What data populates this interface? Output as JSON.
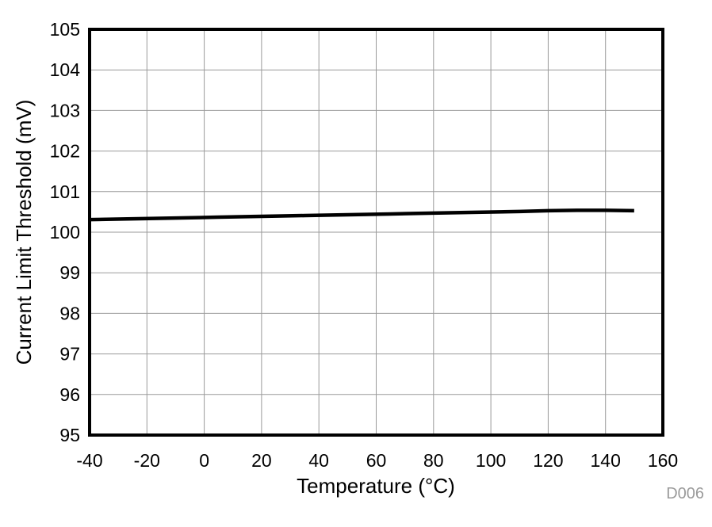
{
  "chart_data": {
    "type": "line",
    "title": "",
    "xlabel": "Temperature (°C)",
    "ylabel": "Current Limit Threshold (mV)",
    "xlim": [
      -40,
      160
    ],
    "ylim": [
      95,
      105
    ],
    "x_ticks": [
      -40,
      -20,
      0,
      20,
      40,
      60,
      80,
      100,
      120,
      140,
      160
    ],
    "y_ticks": [
      95,
      96,
      97,
      98,
      99,
      100,
      101,
      102,
      103,
      104,
      105
    ],
    "grid": "on",
    "legend": "none",
    "watermark": "D006",
    "series": [
      {
        "name": "current-limit-threshold",
        "color": "#000000",
        "x": [
          -40,
          -25,
          -10,
          5,
          20,
          35,
          50,
          65,
          80,
          95,
          110,
          120,
          130,
          140,
          150
        ],
        "y": [
          100.31,
          100.33,
          100.35,
          100.37,
          100.39,
          100.41,
          100.43,
          100.45,
          100.47,
          100.49,
          100.51,
          100.53,
          100.54,
          100.54,
          100.53
        ]
      }
    ]
  },
  "colors": {
    "background": "#ffffff",
    "grid": "#9a9a9a",
    "frame": "#000000",
    "line": "#000000",
    "tick_label": "#000000",
    "watermark": "#9a9a9a"
  }
}
